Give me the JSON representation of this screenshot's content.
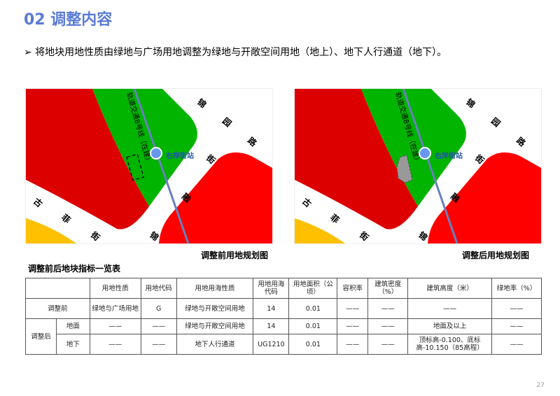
{
  "title": "02 调整内容",
  "bullet": "➢ 将地块用地性质由绿地与广场用地调整为绿地与开敞空间用地（地上）、地下人行通道（地下）。",
  "maps": {
    "line_label": "轨道交通8号线（在建）",
    "station": "右岸街站",
    "road_a": [
      "锦",
      "园",
      "路"
    ],
    "road_b": [
      "街",
      "融",
      "锦"
    ],
    "road_c": [
      "古",
      "菲",
      "街"
    ],
    "before_caption": "调整前用地规划图",
    "after_caption": "调整后用地规划图",
    "colors": {
      "commercial": "#dd0000",
      "commercial_bright": "#ff0000",
      "green": "#00b400",
      "yellow": "#ffc000",
      "metro": "#6a7fbf",
      "station": "#6699ee"
    }
  },
  "table": {
    "title": "调整前后地块指标一览表",
    "headers": [
      "",
      "用地性质",
      "用地代码",
      "用地用海性质",
      "用地用海代码",
      "用地面积（公顷）",
      "容积率",
      "建筑密度（%）",
      "建筑高度（米）",
      "绿地率（%）"
    ],
    "before": {
      "label": "调整前",
      "cells": [
        "绿地与广场用地",
        "G",
        "绿地与开敞空间用地",
        "14",
        "0.01",
        "——",
        "——",
        "——",
        "——"
      ]
    },
    "after_label": "调整后",
    "after_ground": {
      "label": "地面",
      "cells": [
        "——",
        "——",
        "绿地与开敞空间用地",
        "14",
        "0.01",
        "——",
        "——",
        "地面及以上",
        "——"
      ]
    },
    "after_under": {
      "label": "地下",
      "cells": [
        "——",
        "——",
        "地下人行通道",
        "UG1210",
        "0.01",
        "——",
        "——",
        "顶标高-0.100、底标高-10.150（85高程）",
        "——"
      ]
    }
  },
  "page_number": "27"
}
